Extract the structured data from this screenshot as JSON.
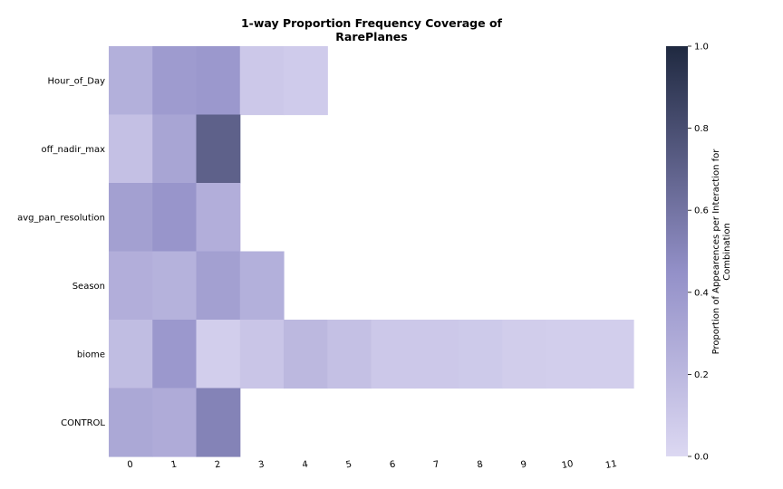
{
  "chart_data": {
    "type": "heatmap",
    "title_lines": [
      "1-way Proportion Frequency Coverage of",
      "RarePlanes"
    ],
    "rows": [
      "Hour_of_Day",
      "off_nadir_max",
      "avg_pan_resolution",
      "Season",
      "biome",
      "CONTROL"
    ],
    "columns": [
      "0",
      "1",
      "2",
      "3",
      "4",
      "5",
      "6",
      "7",
      "8",
      "9",
      "10",
      "11"
    ],
    "values": [
      [
        0.25,
        0.38,
        0.4,
        0.1,
        0.08,
        null,
        null,
        null,
        null,
        null,
        null,
        null
      ],
      [
        0.15,
        0.32,
        0.7,
        null,
        null,
        null,
        null,
        null,
        null,
        null,
        null,
        null
      ],
      [
        0.35,
        0.42,
        0.26,
        null,
        null,
        null,
        null,
        null,
        null,
        null,
        null,
        null
      ],
      [
        0.26,
        0.24,
        0.35,
        0.25,
        null,
        null,
        null,
        null,
        null,
        null,
        null,
        null
      ],
      [
        0.17,
        0.4,
        0.06,
        0.12,
        0.2,
        0.15,
        0.1,
        0.1,
        0.09,
        0.07,
        0.06,
        0.06
      ],
      [
        0.3,
        0.28,
        0.52,
        null,
        null,
        null,
        null,
        null,
        null,
        null,
        null,
        null
      ]
    ],
    "colorbar": {
      "min": 0.0,
      "max": 1.0,
      "ticks": [
        "0.0",
        "0.2",
        "0.4",
        "0.6",
        "0.8",
        "1.0"
      ],
      "label_lines": [
        "Proportion of Appearences per Interaction for",
        "Combination"
      ],
      "color_low": "#dcd8f2",
      "color_mid": "#9390c8",
      "color_high": "#1f2940"
    }
  }
}
